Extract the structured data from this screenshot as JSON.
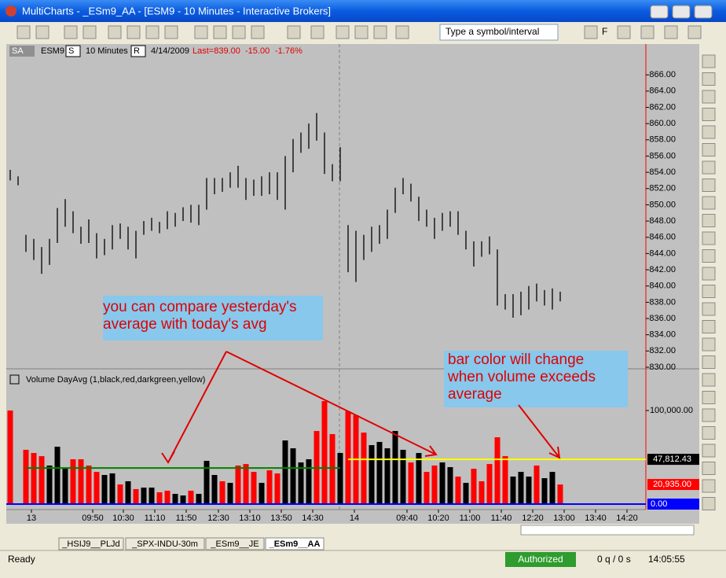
{
  "window": {
    "title": "MultiCharts - _ESm9_AA - [ESM9 - 10 Minutes - Interactive Brokers]"
  },
  "toolbar": {
    "symbol_box": "Type a symbol/interval",
    "font_button": "F"
  },
  "chart_header": {
    "data_source": "SA",
    "symbol": "ESM9",
    "session": "S",
    "interval": "10 Minutes",
    "range": "R",
    "date": "4/14/2009",
    "last": "Last=839.00",
    "change": "-15.00",
    "change_pct": "-1.76%"
  },
  "indicator": "Volume DayAvg  (1,black,red,darkgreen,yellow)",
  "chart_data": [
    {
      "type": "hilo",
      "color": "#000000",
      "x": [
        0,
        1,
        2,
        3,
        4,
        5,
        6,
        7,
        8,
        9,
        10,
        11,
        12,
        13,
        14,
        15,
        16,
        17,
        18,
        19,
        20,
        21,
        22,
        23,
        24,
        25,
        26,
        27,
        28,
        29,
        30,
        31,
        32,
        33,
        34,
        35,
        36,
        37,
        38,
        39,
        40,
        41,
        42,
        43,
        44,
        45,
        46,
        47,
        48,
        49,
        50,
        51,
        52,
        53,
        54,
        55,
        56,
        57,
        58,
        59,
        60,
        61,
        62,
        63,
        64,
        65,
        66,
        67,
        68,
        69,
        70
      ],
      "high": [
        854.3,
        853.5,
        846.3,
        845.8,
        844.8,
        845.8,
        849.6,
        850.7,
        849.2,
        847.3,
        848.2,
        846.5,
        845.8,
        847.5,
        847.7,
        847.3,
        846.8,
        848.0,
        848.4,
        847.9,
        849.2,
        849.0,
        849.7,
        850.0,
        850.0,
        853.3,
        853.3,
        853.3,
        854.0,
        854.8,
        853.3,
        853.1,
        853.5,
        854.0,
        854.0,
        856.0,
        858.1,
        858.9,
        860.0,
        861.3,
        858.9,
        855.0,
        857.1,
        847.5,
        846.8,
        846.3,
        847.3,
        847.5,
        849.4,
        852.1,
        853.3,
        852.6,
        851.0,
        849.4,
        848.4,
        849.0,
        849.2,
        849.2,
        846.8,
        845.5,
        845.5,
        846.1,
        844.5,
        839.0,
        839.0,
        839.3,
        840.0,
        840.3,
        839.5,
        839.7,
        839.3
      ],
      "low": [
        853.0,
        852.4,
        844.2,
        843.2,
        841.5,
        842.6,
        845.3,
        847.3,
        846.5,
        845.2,
        845.3,
        843.4,
        843.8,
        844.5,
        845.8,
        844.5,
        843.4,
        846.3,
        846.8,
        846.5,
        847.0,
        847.3,
        848.0,
        847.8,
        847.5,
        849.4,
        851.3,
        851.6,
        852.1,
        852.1,
        850.6,
        851.1,
        851.1,
        851.3,
        850.6,
        849.4,
        854.0,
        856.4,
        856.9,
        857.9,
        853.8,
        852.9,
        852.9,
        841.7,
        840.5,
        843.2,
        844.2,
        845.2,
        845.8,
        849.0,
        851.3,
        850.4,
        848.0,
        847.3,
        845.8,
        846.8,
        847.3,
        846.3,
        844.5,
        842.4,
        843.6,
        843.9,
        837.6,
        837.1,
        836.1,
        836.4,
        837.1,
        838.1,
        837.6,
        837.1,
        838.1
      ],
      "xlim": [
        -0.5,
        80.9
      ],
      "ylim": [
        829.9,
        869.6
      ],
      "yticks": [
        {
          "value": 830,
          "label": "830.00"
        },
        {
          "value": 832,
          "label": "832.00"
        },
        {
          "value": 834,
          "label": "834.00"
        },
        {
          "value": 836,
          "label": "836.00"
        },
        {
          "value": 838,
          "label": "838.00"
        },
        {
          "value": 840,
          "label": "840.00"
        },
        {
          "value": 842,
          "label": "842.00"
        },
        {
          "value": 844,
          "label": "844.00"
        },
        {
          "value": 846,
          "label": "846.00"
        },
        {
          "value": 848,
          "label": "848.00"
        },
        {
          "value": 850,
          "label": "850.00"
        },
        {
          "value": 852,
          "label": "852.00"
        },
        {
          "value": 854,
          "label": "854.00"
        },
        {
          "value": 856,
          "label": "856.00"
        },
        {
          "value": 858,
          "label": "858.00"
        },
        {
          "value": 860,
          "label": "860.00"
        },
        {
          "value": 862,
          "label": "862.00"
        },
        {
          "value": 864,
          "label": "864.00"
        },
        {
          "value": 866,
          "label": "866.00"
        }
      ]
    },
    {
      "type": "bar",
      "x": [
        0,
        1,
        2,
        3,
        4,
        5,
        6,
        7,
        8,
        9,
        10,
        11,
        12,
        13,
        14,
        15,
        16,
        17,
        18,
        19,
        20,
        21,
        22,
        23,
        24,
        25,
        26,
        27,
        28,
        29,
        30,
        31,
        32,
        33,
        34,
        35,
        36,
        37,
        38,
        39,
        40,
        41,
        42,
        43,
        44,
        45,
        46,
        47,
        48,
        49,
        50,
        51,
        52,
        53,
        54,
        55,
        56,
        57,
        58,
        59,
        60,
        61,
        62,
        63,
        64,
        65,
        66,
        67,
        68,
        69,
        70
      ],
      "values": [
        100000,
        null,
        58000,
        54600,
        51200,
        41200,
        61300,
        38600,
        47900,
        47900,
        41200,
        34400,
        31100,
        32800,
        21000,
        24400,
        16000,
        17600,
        17600,
        12600,
        14300,
        10900,
        9200,
        14300,
        10900,
        46200,
        31100,
        24400,
        22700,
        41200,
        42800,
        34400,
        22700,
        36100,
        32800,
        68000,
        59600,
        44500,
        47900,
        78100,
        110000,
        74800,
        54600,
        99100,
        94900,
        76400,
        63000,
        66400,
        59600,
        78100,
        58000,
        44500,
        54600,
        34400,
        41200,
        44500,
        39500,
        29400,
        22700,
        37800,
        24400,
        42800,
        71400,
        51200,
        29400,
        34400,
        29400,
        41200,
        27700,
        34400,
        20935
      ],
      "colors": [
        "#ff0000",
        null,
        "#ff0000",
        "#ff0000",
        "#ff0000",
        "#000000",
        "#000000",
        "#000000",
        "#ff0000",
        "#ff0000",
        "#ff0000",
        "#ff0000",
        "#000000",
        "#000000",
        "#ff0000",
        "#000000",
        "#ff0000",
        "#000000",
        "#000000",
        "#ff0000",
        "#ff0000",
        "#000000",
        "#000000",
        "#ff0000",
        "#000000",
        "#000000",
        "#000000",
        "#ff0000",
        "#000000",
        "#ff0000",
        "#ff0000",
        "#ff0000",
        "#000000",
        "#ff0000",
        "#ff0000",
        "#000000",
        "#000000",
        "#000000",
        "#000000",
        "#ff0000",
        "#ff0000",
        "#ff0000",
        "#000000",
        "#ff0000",
        "#ff0000",
        "#ff0000",
        "#000000",
        "#000000",
        "#000000",
        "#000000",
        "#000000",
        "#ff0000",
        "#000000",
        "#ff0000",
        "#ff0000",
        "#000000",
        "#000000",
        "#ff0000",
        "#000000",
        "#ff0000",
        "#ff0000",
        "#ff0000",
        "#ff0000",
        "#ff0000",
        "#000000",
        "#000000",
        "#000000",
        "#ff0000",
        "#000000",
        "#000000",
        "#ff0000"
      ],
      "average_lines": [
        {
          "color": "#008000",
          "value": 38600,
          "x": [
            2,
            42
          ]
        },
        {
          "color": "#ffff00",
          "value": 47812.43,
          "label": "47,812.43",
          "x": [
            43,
            80.9
          ]
        }
      ],
      "last": {
        "value": 20935,
        "label": "20,935.00"
      },
      "zero": {
        "value": 0,
        "label": "0.00"
      },
      "xlim": [
        -0.5,
        80.9
      ],
      "ylim": [
        0,
        143700
      ],
      "yticks": [
        {
          "value": 100000,
          "label": "100,000.00"
        }
      ],
      "xticks": [
        {
          "value": 2.7,
          "label": "13"
        },
        {
          "value": 10.5,
          "label": "09:50"
        },
        {
          "value": 14.4,
          "label": "10:30"
        },
        {
          "value": 18.4,
          "label": "11:10"
        },
        {
          "value": 22.4,
          "label": "11:50"
        },
        {
          "value": 26.5,
          "label": "12:30"
        },
        {
          "value": 30.5,
          "label": "13:10"
        },
        {
          "value": 34.5,
          "label": "13:50"
        },
        {
          "value": 38.5,
          "label": "14:30"
        },
        {
          "value": 43.8,
          "label": "14"
        },
        {
          "value": 50.5,
          "label": "09:40"
        },
        {
          "value": 54.5,
          "label": "10:20"
        },
        {
          "value": 58.5,
          "label": "11:00"
        },
        {
          "value": 62.5,
          "label": "11:40"
        },
        {
          "value": 66.5,
          "label": "12:20"
        },
        {
          "value": 70.5,
          "label": "13:00"
        },
        {
          "value": 74.5,
          "label": "13:40"
        },
        {
          "value": 78.5,
          "label": "14:20"
        }
      ]
    }
  ],
  "annotations": [
    {
      "lines": [
        "you can compare yesterday's",
        "average with today's avg"
      ]
    },
    {
      "lines": [
        "bar color will change",
        "when volume exceeds",
        "average"
      ]
    }
  ],
  "tabs": [
    "_HSIJ9__PLJd",
    "_SPX-INDU-30m",
    "_ESm9__JE",
    "_ESm9__AA"
  ],
  "status": {
    "state": "Ready",
    "connection": "Authorized",
    "queue": "0 q / 0 s",
    "time": "14:05:55"
  }
}
